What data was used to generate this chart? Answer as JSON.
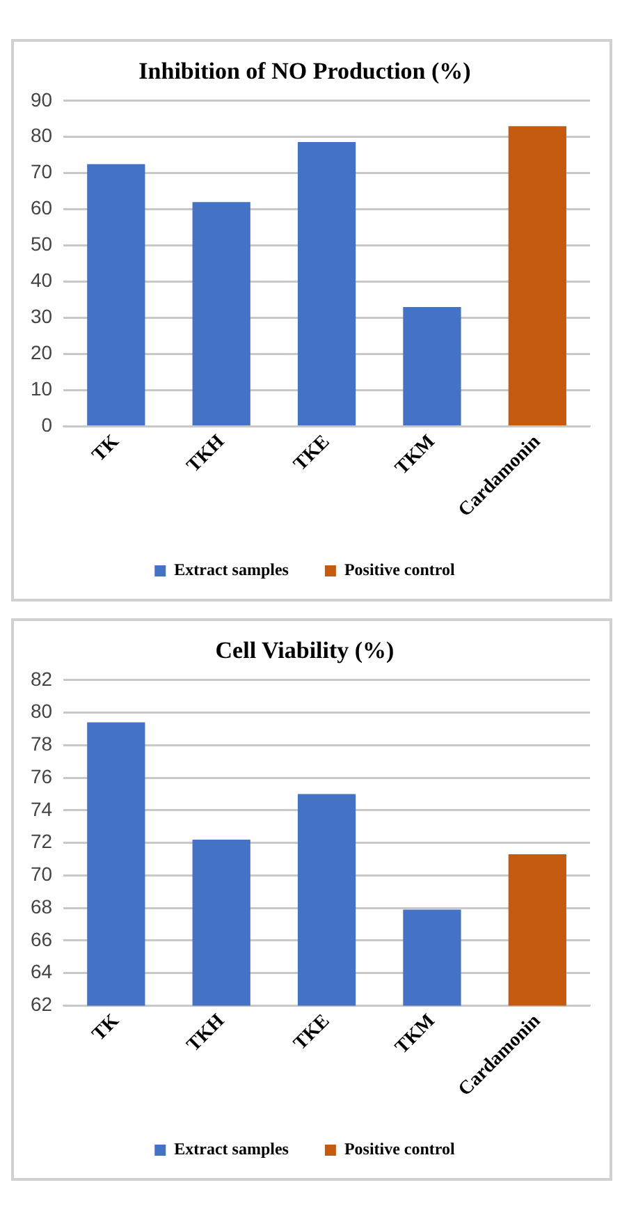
{
  "chart_data": [
    {
      "type": "bar",
      "title": "Inhibition of NO Production (%)",
      "categories": [
        "TK",
        "TKH",
        "TKE",
        "TKM",
        "Cardamonin"
      ],
      "series": [
        {
          "name": "Extract samples",
          "color": "#4472c4",
          "values": [
            72.5,
            62,
            78.6,
            33,
            null
          ]
        },
        {
          "name": "Positive control",
          "color": "#c55a11",
          "values": [
            null,
            null,
            null,
            null,
            83
          ]
        }
      ],
      "ylim": [
        0,
        90
      ],
      "yticks": [
        0,
        10,
        20,
        30,
        40,
        50,
        60,
        70,
        80,
        90
      ],
      "grid": "y",
      "legend": "bottom"
    },
    {
      "type": "bar",
      "title": "Cell Viability (%)",
      "categories": [
        "TK",
        "TKH",
        "TKE",
        "TKM",
        "Cardamonin"
      ],
      "series": [
        {
          "name": "Extract samples",
          "color": "#4472c4",
          "values": [
            79.4,
            72.2,
            75,
            67.9,
            null
          ]
        },
        {
          "name": "Positive control",
          "color": "#c55a11",
          "values": [
            null,
            null,
            null,
            null,
            71.3
          ]
        }
      ],
      "ylim": [
        62,
        82
      ],
      "yticks": [
        62,
        64,
        66,
        68,
        70,
        72,
        74,
        76,
        78,
        80,
        82
      ],
      "grid": "y",
      "legend": "bottom"
    }
  ]
}
